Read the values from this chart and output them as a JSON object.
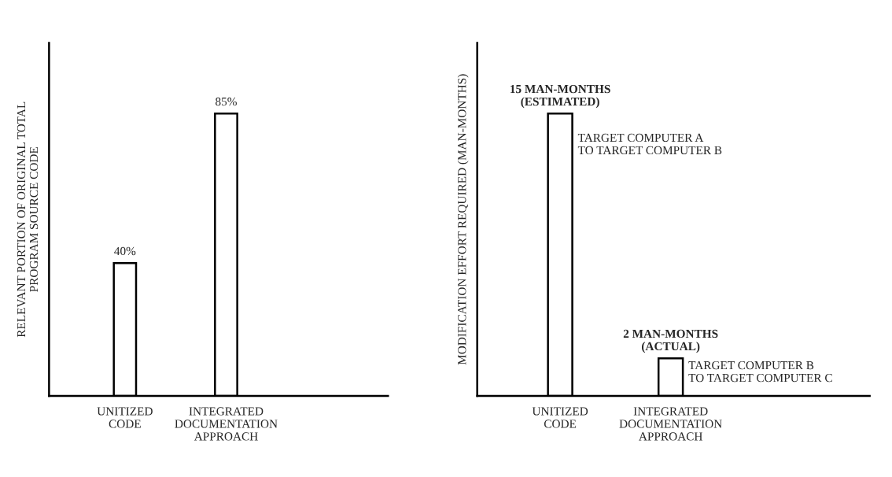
{
  "chart_data": [
    {
      "type": "bar",
      "ylabel": "RELEVANT PORTION OF ORIGINAL TOTAL\nPROGRAM SOURCE CODE",
      "categories": [
        "UNITIZED\nCODE",
        "INTEGRATED\nDOCUMENTATION\nAPPROACH"
      ],
      "values": [
        40,
        85
      ],
      "value_labels": [
        "40%",
        "85%"
      ],
      "color": "#ffffff",
      "tick_labels": "x",
      "grid": false,
      "legend": false
    },
    {
      "type": "bar",
      "ylabel": "MODIFICATION EFFORT REQUIRED (MAN-MONTHS)",
      "categories": [
        "UNITIZED\nCODE",
        "INTEGRATED\nDOCUMENTATION\nAPPROACH"
      ],
      "values": [
        15,
        2
      ],
      "value_labels": [
        "15 MAN-MONTHS\n(ESTIMATED)",
        "2 MAN-MONTHS\n(ACTUAL)"
      ],
      "color": "#ffffff",
      "tick_labels": "x",
      "grid": false,
      "legend": false,
      "annotations": [
        "TARGET COMPUTER A\nTO TARGET COMPUTER B",
        "TARGET COMPUTER B\nTO TARGET COMPUTER C"
      ]
    }
  ]
}
